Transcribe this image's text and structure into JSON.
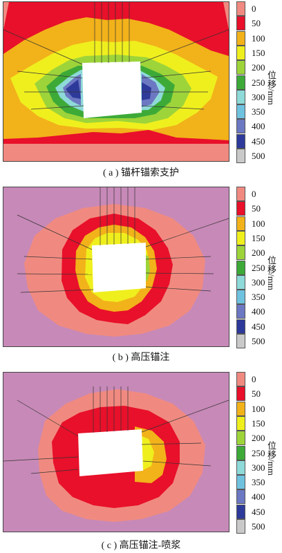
{
  "panels": [
    {
      "caption": "( a ) 锚杆锚索支护"
    },
    {
      "caption": "( b ) 高压锚注"
    },
    {
      "caption": "( c ) 高压锚注-喷浆"
    }
  ],
  "legend": {
    "unit_label": "位移/mm",
    "levels": [
      {
        "label": "0",
        "color": "#F08A80"
      },
      {
        "label": "50",
        "color": "#E8102A"
      },
      {
        "label": "100",
        "color": "#F2B21A"
      },
      {
        "label": "150",
        "color": "#EFEF1E"
      },
      {
        "label": "200",
        "color": "#9DD43A"
      },
      {
        "label": "250",
        "color": "#3DAA38"
      },
      {
        "label": "300",
        "color": "#8EDAD8"
      },
      {
        "label": "350",
        "color": "#6FC2DE"
      },
      {
        "label": "400",
        "color": "#6C78C2"
      },
      {
        "label": "450",
        "color": "#2E3A9A"
      },
      {
        "label": "500",
        "color": "#C9C9C9"
      }
    ],
    "background_color": "#C789B8"
  }
}
